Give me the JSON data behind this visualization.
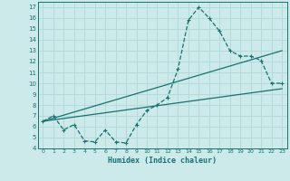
{
  "xlabel": "Humidex (Indice chaleur)",
  "background_color": "#cdeaea",
  "grid_color": "#b0d8d8",
  "line_color": "#1a7070",
  "xlim": [
    -0.5,
    23.5
  ],
  "ylim": [
    4,
    17.5
  ],
  "xticks": [
    0,
    1,
    2,
    3,
    4,
    5,
    6,
    7,
    8,
    9,
    10,
    11,
    12,
    13,
    14,
    15,
    16,
    17,
    18,
    19,
    20,
    21,
    22,
    23
  ],
  "yticks": [
    4,
    5,
    6,
    7,
    8,
    9,
    10,
    11,
    12,
    13,
    14,
    15,
    16,
    17
  ],
  "curve1_x": [
    0,
    1,
    2,
    3,
    4,
    5,
    6,
    7,
    8,
    9,
    10,
    11,
    12,
    13,
    14,
    15,
    16,
    17,
    18,
    19,
    20,
    21,
    22,
    23
  ],
  "curve1_y": [
    6.5,
    7.0,
    5.7,
    6.2,
    4.7,
    4.6,
    5.7,
    4.6,
    4.5,
    6.2,
    7.5,
    8.0,
    8.7,
    11.3,
    15.8,
    17.0,
    16.0,
    14.8,
    13.0,
    12.5,
    12.5,
    12.1,
    10.0,
    10.0
  ],
  "line2_x": [
    0,
    23
  ],
  "line2_y": [
    6.5,
    13.0
  ],
  "line3_x": [
    0,
    23
  ],
  "line3_y": [
    6.5,
    9.5
  ]
}
